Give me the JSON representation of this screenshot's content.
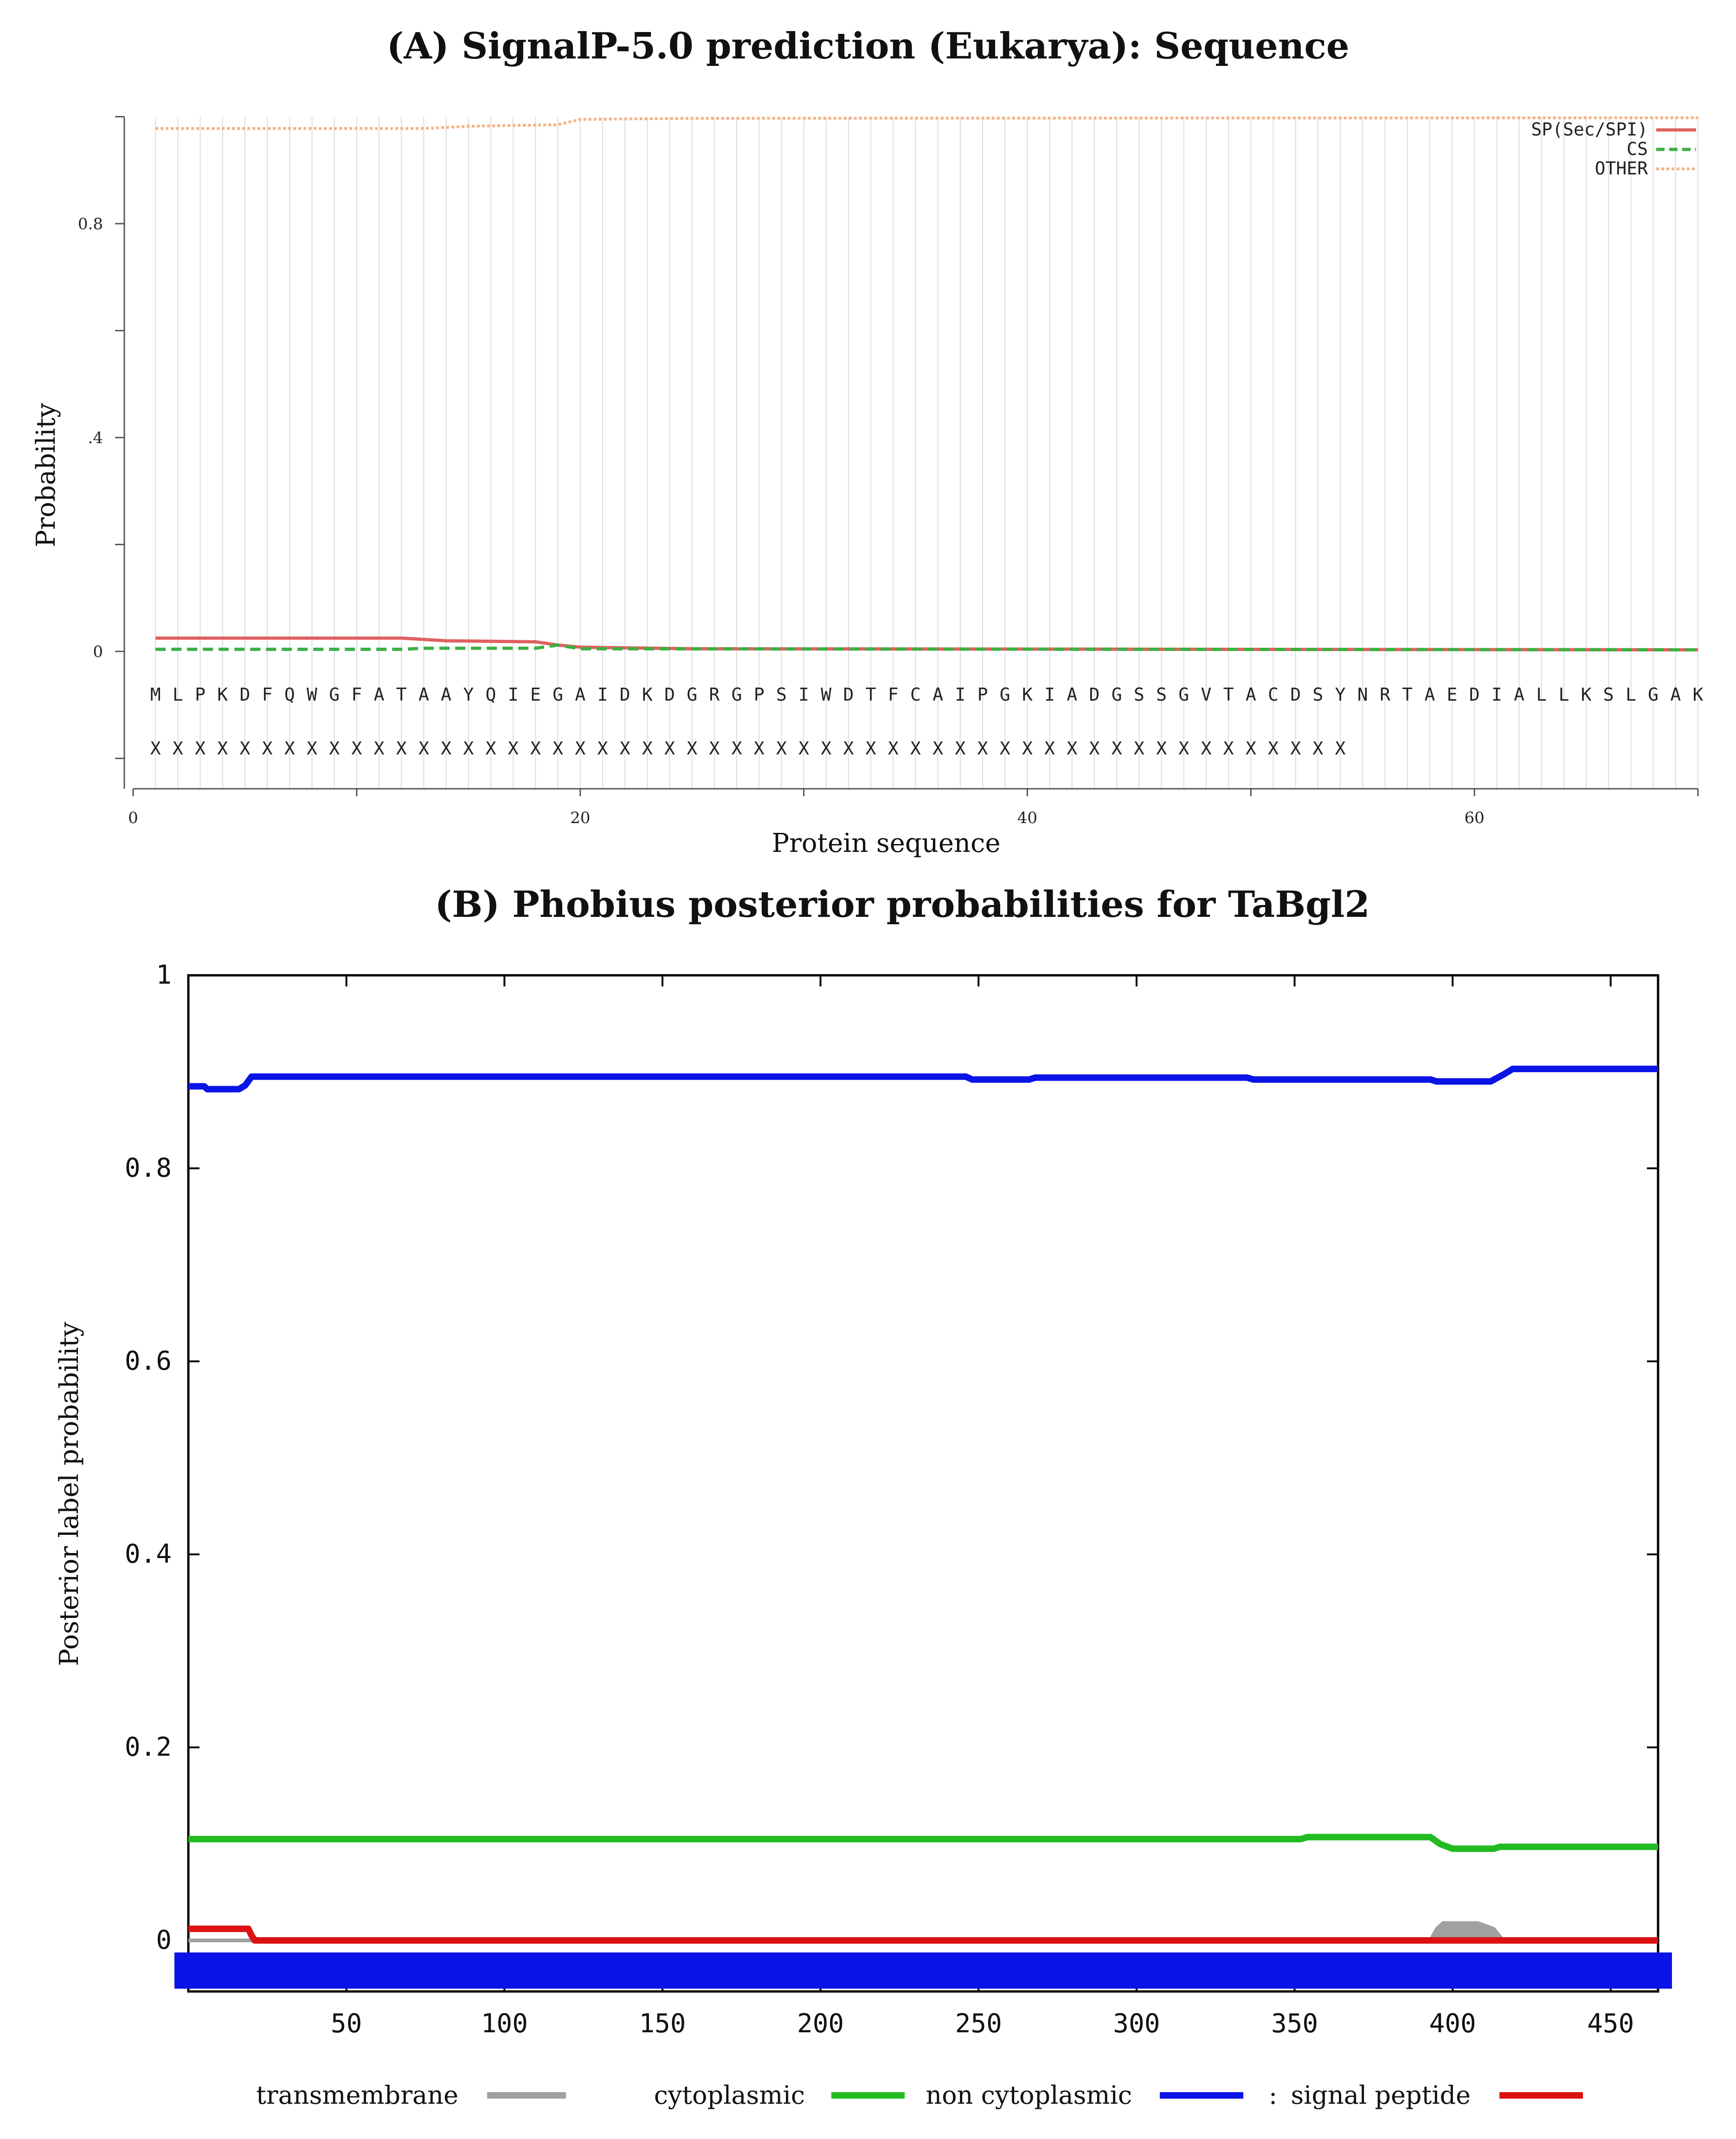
{
  "chart_data": [
    {
      "type": "line",
      "title": "(A) SignalP-5.0 prediction (Eukarya): Sequence",
      "xlabel": "Protein sequence",
      "ylabel": "Probability",
      "xlim": [
        0,
        70
      ],
      "ylim": [
        -0.25,
        1.0
      ],
      "x_ticks": [
        {
          "value": 0,
          "label": "0"
        },
        {
          "value": 20,
          "label": "20"
        },
        {
          "value": 40,
          "label": "40"
        },
        {
          "value": 60,
          "label": "60"
        }
      ],
      "y_ticks": [
        {
          "value": 0,
          "label": "0"
        },
        {
          "value": 0.4,
          "label": ".4"
        },
        {
          "value": 0.8,
          "label": "0.8"
        }
      ],
      "grid": "vertical lines at each residue",
      "legend": "top-right",
      "sequence": "MLPKDFQWGFATAAYQIEGAIDKDGRGPSIWDTFCAIPGKIADGSSGVTACDSYNRTAEDIALLKSLGAK",
      "annotation_row": "XXXXXXXXXXXXXXXXXXXXXXXXXXXXXXXXXXXXXXXXXXXXXXXXXXXXXX",
      "series": [
        {
          "name": "SP(Sec/SPI)",
          "color": "#e06060",
          "style": "solid",
          "points": [
            [
              1,
              0.025
            ],
            [
              12,
              0.025
            ],
            [
              14,
              0.02
            ],
            [
              18,
              0.018
            ],
            [
              19,
              0.012
            ],
            [
              20,
              0.008
            ],
            [
              25,
              0.005
            ],
            [
              70,
              0.003
            ]
          ]
        },
        {
          "name": "CS",
          "color": "#3cb043",
          "style": "dashed",
          "points": [
            [
              1,
              0.004
            ],
            [
              12,
              0.004
            ],
            [
              13,
              0.006
            ],
            [
              18,
              0.006
            ],
            [
              19,
              0.012
            ],
            [
              20,
              0.005
            ],
            [
              70,
              0.003
            ]
          ]
        },
        {
          "name": "OTHER",
          "color": "#f4b183",
          "style": "dotted",
          "points": [
            [
              1,
              0.978
            ],
            [
              13,
              0.978
            ],
            [
              15,
              0.982
            ],
            [
              19,
              0.985
            ],
            [
              20,
              0.995
            ],
            [
              25,
              0.997
            ],
            [
              70,
              0.998
            ]
          ]
        }
      ]
    },
    {
      "type": "line",
      "title": "(B) Phobius posterior probabilities for TaBgl2",
      "xlabel": "",
      "ylabel": "Posterior label probability",
      "xlim": [
        0,
        465
      ],
      "ylim": [
        -0.03,
        1.0
      ],
      "x_ticks": [
        {
          "value": 50,
          "label": "50"
        },
        {
          "value": 100,
          "label": "100"
        },
        {
          "value": 150,
          "label": "150"
        },
        {
          "value": 200,
          "label": "200"
        },
        {
          "value": 250,
          "label": "250"
        },
        {
          "value": 300,
          "label": "300"
        },
        {
          "value": 350,
          "label": "350"
        },
        {
          "value": 400,
          "label": "400"
        },
        {
          "value": 450,
          "label": "450"
        }
      ],
      "y_ticks": [
        {
          "value": 0,
          "label": "0"
        },
        {
          "value": 0.2,
          "label": "0.2"
        },
        {
          "value": 0.4,
          "label": "0.4"
        },
        {
          "value": 0.6,
          "label": "0.6"
        },
        {
          "value": 0.8,
          "label": "0.8"
        },
        {
          "value": 1,
          "label": "1"
        }
      ],
      "legend": "bottom",
      "legend_separator": ":",
      "series": [
        {
          "name": "transmembrane",
          "color": "#a0a0a0",
          "points": [
            [
              0,
              0
            ],
            [
              393,
              0
            ],
            [
              395,
              0.012
            ],
            [
              397,
              0.018
            ],
            [
              408,
              0.018
            ],
            [
              413,
              0.012
            ],
            [
              416,
              0
            ],
            [
              465,
              0
            ]
          ]
        },
        {
          "name": "cytoplasmic",
          "color": "#22bb22",
          "points": [
            [
              0,
              0.105
            ],
            [
              352,
              0.105
            ],
            [
              354,
              0.107
            ],
            [
              393,
              0.107
            ],
            [
              396,
              0.1
            ],
            [
              400,
              0.095
            ],
            [
              413,
              0.095
            ],
            [
              415,
              0.097
            ],
            [
              465,
              0.097
            ]
          ]
        },
        {
          "name": "non cytoplasmic",
          "color": "#0a14e6",
          "points": [
            [
              0,
              0.885
            ],
            [
              5,
              0.885
            ],
            [
              6,
              0.882
            ],
            [
              16,
              0.882
            ],
            [
              18,
              0.886
            ],
            [
              20,
              0.895
            ],
            [
              246,
              0.895
            ],
            [
              248,
              0.892
            ],
            [
              266,
              0.892
            ],
            [
              268,
              0.894
            ],
            [
              335,
              0.894
            ],
            [
              337,
              0.892
            ],
            [
              393,
              0.892
            ],
            [
              395,
              0.89
            ],
            [
              412,
              0.89
            ],
            [
              416,
              0.897
            ],
            [
              419,
              0.903
            ],
            [
              465,
              0.903
            ]
          ]
        },
        {
          "name": "signal peptide",
          "color": "#dd1111",
          "points": [
            [
              0,
              0.012
            ],
            [
              19,
              0.012
            ],
            [
              20,
              0.005
            ],
            [
              21,
              0
            ],
            [
              465,
              0
            ]
          ]
        }
      ],
      "bottom_bar": {
        "label": "non cytoplasmic",
        "color": "#0a14e6",
        "from": 0,
        "to": 465
      }
    }
  ]
}
